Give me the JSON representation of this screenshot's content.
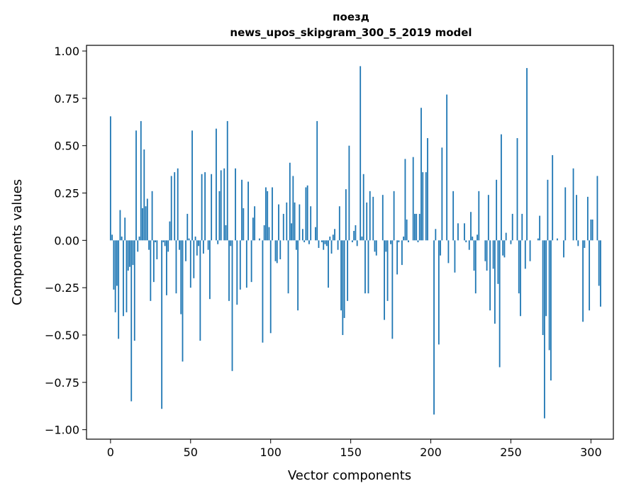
{
  "chart_data": {
    "type": "bar",
    "title": "поезд",
    "subtitle": "news_upos_skipgram_300_5_2019 model",
    "xlabel": "Vector components",
    "ylabel": "Components values",
    "xlim": [
      -15,
      314
    ],
    "ylim": [
      -1.05,
      1.03
    ],
    "xticks": [
      0,
      50,
      100,
      150,
      200,
      250,
      300
    ],
    "xtick_labels": [
      "0",
      "50",
      "100",
      "150",
      "200",
      "250",
      "300"
    ],
    "yticks": [
      1.0,
      0.75,
      0.5,
      0.25,
      0.0,
      -0.25,
      -0.5,
      -0.75,
      -1.0
    ],
    "ytick_labels": [
      "1.00",
      "0.75",
      "0.50",
      "0.25",
      "0.00",
      "−0.25",
      "−0.50",
      "−0.75",
      "−1.00"
    ],
    "bar_color": "#1f77b4",
    "values": [
      0.655,
      0.03,
      -0.26,
      -0.38,
      -0.24,
      -0.52,
      0.16,
      0.02,
      -0.4,
      0.12,
      -0.38,
      -0.16,
      -0.14,
      -0.85,
      -0.13,
      -0.53,
      0.58,
      -0.06,
      0.02,
      0.63,
      0.17,
      0.48,
      0.18,
      0.22,
      -0.05,
      -0.32,
      0.26,
      -0.22,
      -0.01,
      -0.1,
      0.0,
      0.0,
      -0.89,
      -0.01,
      -0.03,
      -0.29,
      -0.06,
      0.1,
      0.34,
      0.0,
      0.36,
      -0.28,
      0.38,
      -0.05,
      -0.39,
      -0.64,
      0.0,
      -0.11,
      0.14,
      0.01,
      -0.25,
      0.58,
      -0.2,
      0.02,
      -0.08,
      -0.03,
      -0.53,
      0.35,
      -0.07,
      0.36,
      0.0,
      -0.05,
      -0.31,
      0.35,
      0.0,
      0.0,
      0.59,
      -0.02,
      0.26,
      0.37,
      0.0,
      0.38,
      0.08,
      0.63,
      -0.32,
      -0.03,
      -0.69,
      0.0,
      0.38,
      -0.34,
      0.0,
      -0.26,
      0.32,
      0.17,
      0.0,
      -0.25,
      0.31,
      0.0,
      -0.22,
      0.12,
      0.18,
      0.0,
      0.0,
      0.01,
      0.0,
      -0.54,
      0.08,
      0.28,
      0.26,
      0.07,
      -0.49,
      0.28,
      0.0,
      -0.11,
      -0.12,
      0.19,
      -0.1,
      0.0,
      0.14,
      0.0,
      0.2,
      -0.28,
      0.41,
      0.09,
      0.34,
      0.2,
      -0.05,
      -0.37,
      0.19,
      0.0,
      0.06,
      -0.01,
      0.28,
      0.29,
      -0.02,
      0.18,
      0.0,
      0.0,
      0.07,
      0.63,
      -0.04,
      0.0,
      -0.01,
      -0.05,
      -0.02,
      -0.03,
      -0.25,
      0.02,
      -0.07,
      0.03,
      0.06,
      0.0,
      -0.05,
      0.18,
      -0.37,
      -0.5,
      -0.41,
      0.27,
      -0.32,
      0.5,
      0.0,
      -0.01,
      0.05,
      0.08,
      -0.03,
      0.0,
      0.92,
      0.02,
      0.35,
      -0.28,
      0.2,
      -0.28,
      0.26,
      0.0,
      0.23,
      -0.06,
      -0.08,
      0.0,
      0.0,
      0.0,
      0.24,
      -0.42,
      -0.06,
      -0.32,
      0.0,
      -0.02,
      -0.52,
      0.26,
      0.0,
      -0.18,
      -0.01,
      0.0,
      -0.13,
      0.02,
      0.43,
      0.11,
      -0.01,
      0.0,
      0.0,
      0.44,
      0.14,
      0.14,
      -0.01,
      0.14,
      0.7,
      0.36,
      0.0,
      0.36,
      0.54,
      0.0,
      0.0,
      0.0,
      -0.92,
      0.06,
      0.0,
      -0.55,
      -0.08,
      0.49,
      0.0,
      0.0,
      0.77,
      -0.12,
      0.0,
      0.0,
      0.26,
      -0.17,
      0.0,
      0.09,
      0.0,
      0.0,
      0.0,
      0.09,
      -0.01,
      0.0,
      -0.05,
      0.15,
      0.02,
      -0.16,
      -0.28,
      0.03,
      0.26,
      0.0,
      0.0,
      0.0,
      -0.11,
      -0.16,
      0.24,
      -0.37,
      0.0,
      -0.15,
      -0.44,
      0.32,
      -0.23,
      -0.67,
      0.56,
      -0.08,
      -0.09,
      0.04,
      0.0,
      0.0,
      -0.02,
      0.14,
      0.0,
      0.0,
      0.54,
      -0.28,
      -0.4,
      0.14,
      0.0,
      -0.15,
      0.91,
      0.0,
      -0.11,
      0.0,
      0.0,
      0.0,
      0.0,
      0.01,
      0.13,
      0.0,
      -0.5,
      -0.94,
      -0.4,
      0.32,
      -0.58,
      -0.74,
      0.45,
      0.0,
      0.0,
      0.01,
      0.0,
      0.0,
      0.0,
      -0.09,
      0.28,
      0.0,
      0.0,
      0.0,
      0.0,
      0.38,
      0.0,
      0.24,
      -0.03,
      0.0,
      0.0,
      -0.43,
      -0.04,
      0.0,
      0.23,
      -0.37,
      0.11,
      0.11,
      0.0,
      0.0,
      0.34,
      -0.24,
      -0.35
    ]
  }
}
